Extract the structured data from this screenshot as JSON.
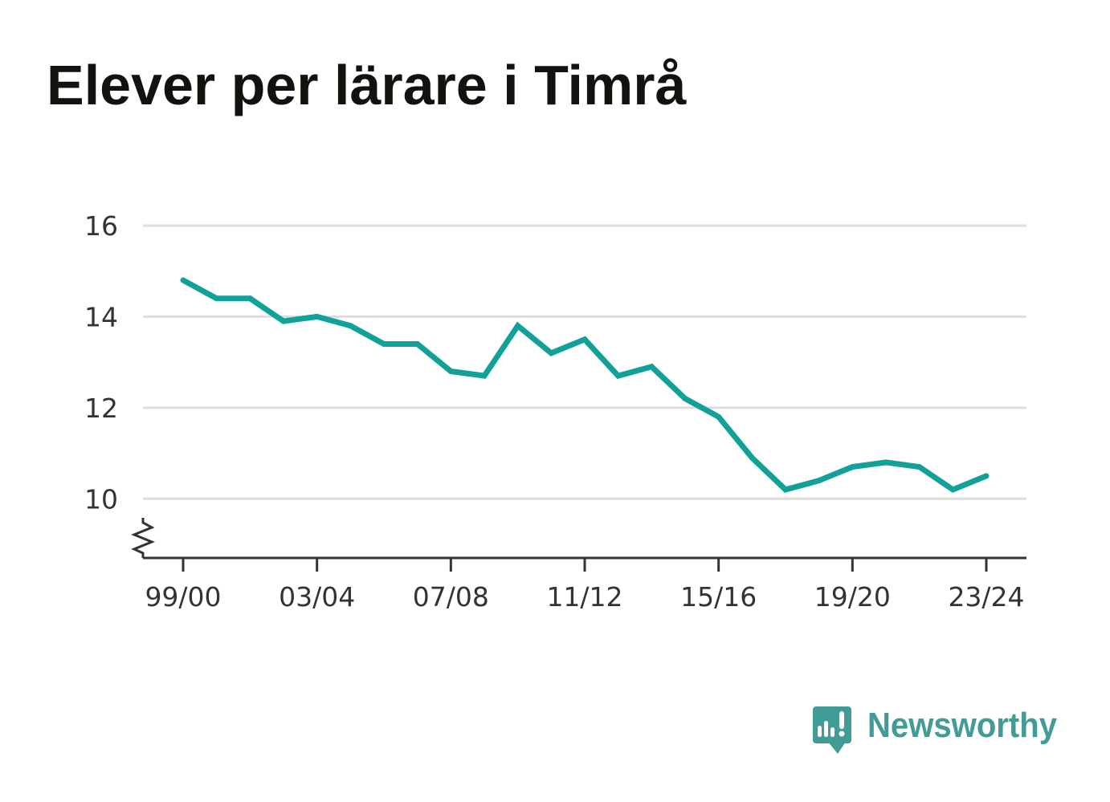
{
  "chart_data": {
    "type": "line",
    "title": "Elever per lärare i Timrå",
    "categories": [
      "99/00",
      "00/01",
      "01/02",
      "02/03",
      "03/04",
      "04/05",
      "05/06",
      "06/07",
      "07/08",
      "08/09",
      "09/10",
      "10/11",
      "11/12",
      "12/13",
      "13/14",
      "14/15",
      "15/16",
      "16/17",
      "17/18",
      "18/19",
      "19/20",
      "20/21",
      "21/22",
      "22/23",
      "23/24"
    ],
    "x_tick_labels": [
      "99/00",
      "03/04",
      "07/08",
      "11/12",
      "15/16",
      "19/20",
      "23/24"
    ],
    "series": [
      {
        "values": [
          14.8,
          14.4,
          14.4,
          13.9,
          14.0,
          13.8,
          13.4,
          13.4,
          12.8,
          12.7,
          13.8,
          13.2,
          13.5,
          12.7,
          12.9,
          12.2,
          11.8,
          10.9,
          10.2,
          10.4,
          10.7,
          10.8,
          10.7,
          10.2,
          10.5
        ],
        "color": "#12a198"
      }
    ],
    "y_ticks": [
      10,
      12,
      14,
      16
    ],
    "ylim": [
      8.7,
      16
    ],
    "grid": true,
    "y_axis_break": true
  },
  "branding": {
    "logo_text": "Newsworthy",
    "icon": "newsworthy-logo-icon",
    "color": "#419c95"
  }
}
